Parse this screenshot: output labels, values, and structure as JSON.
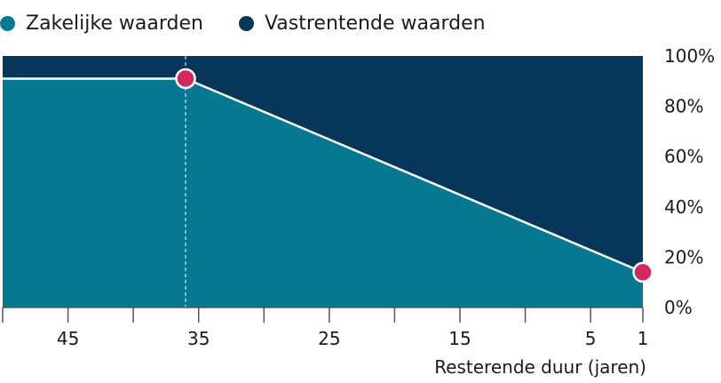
{
  "colors": {
    "zakelijk": "#077891",
    "vastrentend": "#06375a",
    "marker": "#d12a63",
    "line": "#ffffff",
    "axis": "#555555"
  },
  "chart_data": {
    "type": "area",
    "title": "",
    "xlabel": "Resterende duur (jaren)",
    "ylabel": "",
    "x_reversed": true,
    "xlim": [
      50,
      1
    ],
    "ylim": [
      0,
      100
    ],
    "x_ticks": [
      45,
      35,
      25,
      15,
      5,
      1
    ],
    "x_minor_ticks": [
      50,
      40,
      30,
      20,
      10
    ],
    "y_ticks": [
      0,
      20,
      40,
      60,
      80,
      100
    ],
    "y_tick_labels": [
      "0%",
      "20%",
      "40%",
      "60%",
      "80%",
      "100%"
    ],
    "y_axis_position": "right",
    "legend_position": "top-left",
    "series": [
      {
        "name": "Zakelijke waarden",
        "color_key": "zakelijk",
        "points": [
          [
            50,
            91
          ],
          [
            36,
            91
          ],
          [
            1,
            14
          ]
        ]
      },
      {
        "name": "Vastrentende waarden",
        "color_key": "vastrentend",
        "points": [
          [
            50,
            9
          ],
          [
            36,
            9
          ],
          [
            1,
            86
          ]
        ]
      }
    ],
    "markers": [
      [
        36,
        91
      ],
      [
        1,
        14
      ]
    ],
    "reference_line_x": 36
  }
}
